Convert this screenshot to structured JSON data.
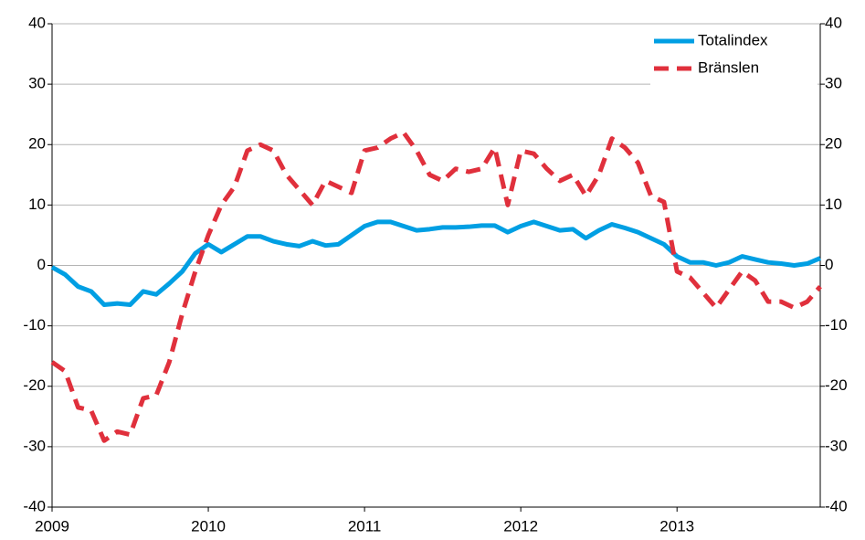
{
  "chart_data": {
    "type": "line",
    "categories": [
      "2009",
      null,
      null,
      null,
      null,
      null,
      null,
      null,
      null,
      null,
      null,
      null,
      "2010",
      null,
      null,
      null,
      null,
      null,
      null,
      null,
      null,
      null,
      null,
      null,
      "2011",
      null,
      null,
      null,
      null,
      null,
      null,
      null,
      null,
      null,
      null,
      null,
      "2012",
      null,
      null,
      null,
      null,
      null,
      null,
      null,
      null,
      null,
      null,
      null,
      "2013",
      null,
      null,
      null,
      null,
      null,
      null,
      null,
      null,
      null,
      null,
      null
    ],
    "series": [
      {
        "name": "Totalindex",
        "color": "#009fe3",
        "dash": false,
        "values": [
          -0.3,
          -1.5,
          -3.5,
          -4.3,
          -6.5,
          -6.3,
          -6.5,
          -4.3,
          -4.8,
          -3,
          -1,
          2,
          3.5,
          2.2,
          3.5,
          4.8,
          4.8,
          4,
          3.5,
          3.2,
          4,
          3.3,
          3.5,
          5,
          6.5,
          7.2,
          7.2,
          6.5,
          5.8,
          6,
          6.3,
          6.3,
          6.4,
          6.6,
          6.6,
          5.5,
          6.5,
          7.2,
          6.5,
          5.8,
          6,
          4.5,
          5.8,
          6.8,
          6.2,
          5.5,
          4.5,
          3.5,
          1.5,
          0.5,
          0.5,
          0,
          0.5,
          1.5,
          1,
          0.5,
          0.3,
          0,
          0.3,
          1.2
        ]
      },
      {
        "name": "Bränslen",
        "color": "#e0303c",
        "dash": true,
        "values": [
          -16,
          -17.5,
          -23.5,
          -24,
          -29,
          -27.5,
          -28,
          -22,
          -21.5,
          -16,
          -8,
          -1,
          5,
          10,
          13,
          19,
          20,
          19,
          15,
          12.5,
          10,
          14,
          13,
          12,
          19,
          19.5,
          21,
          22,
          19,
          15,
          14,
          16,
          15.5,
          16,
          19.5,
          10,
          19,
          18.5,
          16,
          14,
          15,
          11.5,
          15,
          21,
          19.5,
          17,
          11.5,
          10.5,
          -1,
          -2,
          -4.5,
          -7,
          -4,
          -1,
          -2.5,
          -6,
          -6,
          -7,
          -6,
          -3.5
        ]
      }
    ],
    "ylim": [
      -40,
      40
    ],
    "yticks": [
      -40,
      -30,
      -20,
      -10,
      0,
      10,
      20,
      30,
      40
    ],
    "y2lim": [
      -40,
      40
    ],
    "y2ticks": [
      -40,
      -30,
      -20,
      -10,
      0,
      10,
      20,
      30,
      40
    ],
    "grid": true,
    "legend": "upper right"
  }
}
